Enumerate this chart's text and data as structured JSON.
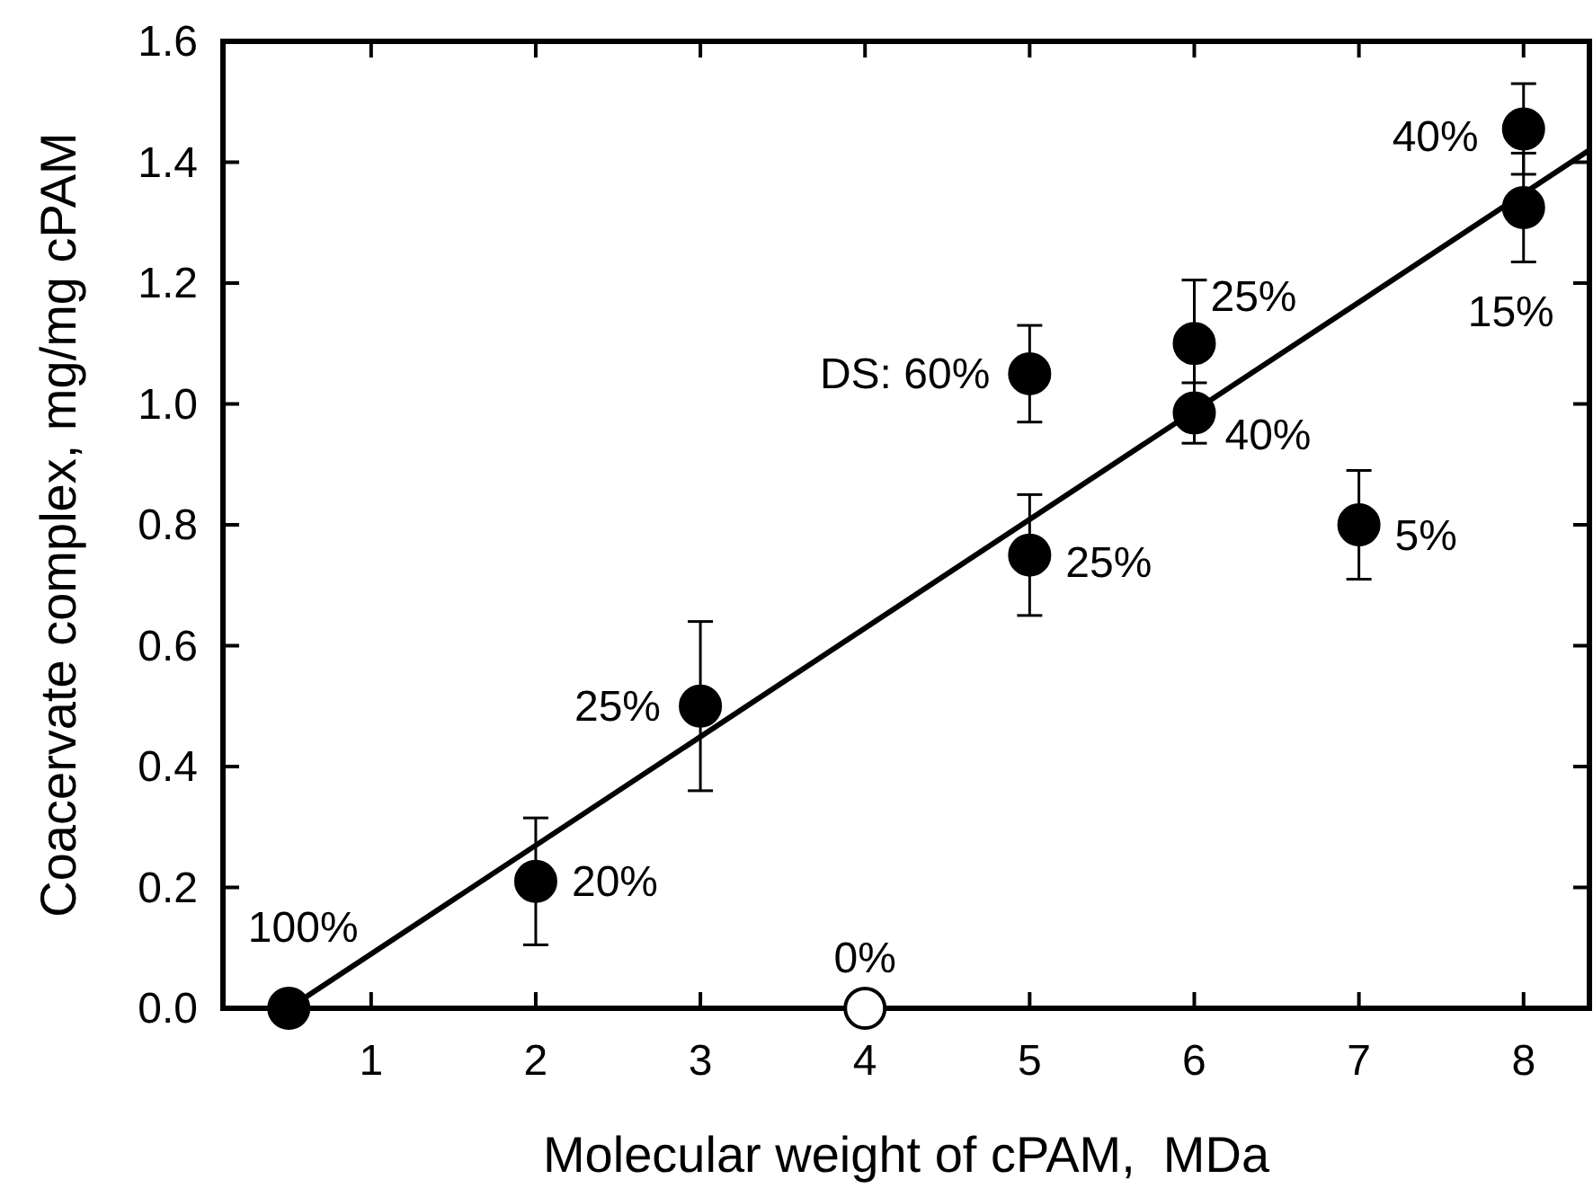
{
  "chart_data": {
    "type": "scatter",
    "xlabel": "Molecular weight of cPAM,  MDa",
    "ylabel": "Coacervate complex, mg/mg cPAM",
    "xlim": [
      0.1,
      8.4
    ],
    "xticks": [
      1,
      2,
      3,
      4,
      5,
      6,
      7,
      8
    ],
    "ylim": [
      0,
      1.6
    ],
    "yticks": [
      {
        "value": 0,
        "label": "0.0"
      },
      0.2,
      0.4,
      0.6,
      0.8,
      {
        "value": 1,
        "label": "1.0"
      },
      1.2,
      1.4,
      1.6
    ],
    "grid": false,
    "series": [
      {
        "marker": "circle",
        "x": [
          0.5,
          2,
          3,
          4,
          5,
          5,
          6,
          6,
          7,
          8,
          8
        ],
        "values": [
          0,
          0.21,
          0.5,
          0,
          0.75,
          1.05,
          1.1,
          0.985,
          0.8,
          1.455,
          1.325
        ],
        "colors": [
          "#000000",
          "#000000",
          "#000000",
          "#ffffff",
          "#000000",
          "#000000",
          "#000000",
          "#000000",
          "#000000",
          "#000000",
          "#000000"
        ],
        "errors": [
          null,
          0.105,
          0.14,
          null,
          0.1,
          0.08,
          0.105,
          0.05,
          0.09,
          0.075,
          0.09
        ]
      },
      {
        "type": "line",
        "x": [
          0.5,
          8.4
        ],
        "values": [
          0,
          1.42
        ],
        "color": "#000000",
        "line_style": "solid",
        "marker": "none"
      }
    ],
    "annotations": [
      {
        "text": "100%",
        "x": 0.5,
        "y": 0
      },
      {
        "text": "20%",
        "x": 2,
        "y": 0.21
      },
      {
        "text": "25%",
        "x": 3,
        "y": 0.5
      },
      {
        "text": "0%",
        "x": 4,
        "y": 0
      },
      {
        "text": "25%",
        "x": 5,
        "y": 0.75
      },
      {
        "text": "DS: 60%",
        "x": 5,
        "y": 1.05
      },
      {
        "text": "25%",
        "x": 6,
        "y": 1.1
      },
      {
        "text": "40%",
        "x": 6,
        "y": 0.985
      },
      {
        "text": "5%",
        "x": 7,
        "y": 0.8
      },
      {
        "text": "40%",
        "x": 8,
        "y": 1.455
      },
      {
        "text": "15%",
        "x": 8,
        "y": 1.325
      }
    ]
  }
}
